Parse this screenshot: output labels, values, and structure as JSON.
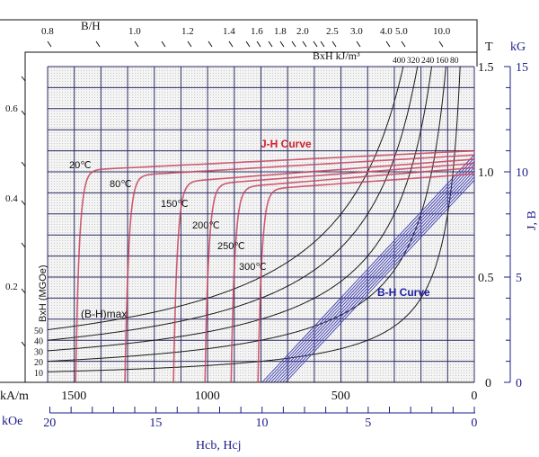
{
  "chart_data": {
    "type": "line",
    "title": "",
    "x_axis": {
      "label": "Hcb,  Hcj",
      "unit_primary": "kA/m",
      "ticks_primary": [
        "1500",
        "1000",
        "500",
        "0"
      ],
      "tick_values_primary": [
        1500,
        1000,
        500,
        0
      ],
      "unit_secondary": "kOe",
      "ticks_secondary": [
        "20",
        "15",
        "10",
        "5",
        "0"
      ],
      "tick_values_secondary": [
        20,
        15,
        10,
        5,
        0
      ],
      "range_kAm": [
        1600,
        0
      ],
      "direction": "reversed"
    },
    "y_axis": {
      "label": "J,  B",
      "unit_primary": "T",
      "ticks_primary": [
        "1.5",
        "1.0",
        "0.5",
        "0"
      ],
      "tick_values_primary": [
        1.5,
        1.0,
        0.5,
        0
      ],
      "unit_secondary": "kG",
      "ticks_secondary": [
        "15",
        "10",
        "5",
        "0"
      ],
      "range_T": [
        0,
        1.5
      ]
    },
    "grid": true,
    "permeance_scale": {
      "label": "B/H",
      "top_ticks": [
        "0.8",
        "1.0",
        "1.2",
        "1.4",
        "1.6",
        "1.8",
        "2.0",
        "2.5",
        "3.0",
        "4.0",
        "5.0",
        "10.0"
      ],
      "left_ticks": [
        "0.6",
        "0.4",
        "0.2"
      ]
    },
    "energy_product": {
      "label_si": "BxH kJ/m³",
      "label_cgs": "BxH (MGOe)",
      "max_label": "(B-H)max",
      "values_kJm3": [
        400,
        320,
        240,
        160,
        80
      ],
      "labels_kJm3": [
        "400",
        "320",
        "240",
        "160",
        "80"
      ],
      "labels_MGOe": [
        "50",
        "40",
        "30",
        "20",
        "10"
      ]
    },
    "j_h_curves": {
      "label": "J-H Curve",
      "series": [
        {
          "name": "20℃",
          "jr_T": 1.1,
          "j_knee_T": 1.01,
          "hcj_kAm": 1495
        },
        {
          "name": "80℃",
          "jr_T": 1.08,
          "j_knee_T": 0.985,
          "hcj_kAm": 1310
        },
        {
          "name": "150℃",
          "jr_T": 1.06,
          "j_knee_T": 0.955,
          "hcj_kAm": 1128
        },
        {
          "name": "200℃",
          "jr_T": 1.04,
          "j_knee_T": 0.945,
          "hcj_kAm": 1010
        },
        {
          "name": "250℃",
          "jr_T": 1.02,
          "j_knee_T": 0.93,
          "hcj_kAm": 912
        },
        {
          "name": "300℃",
          "jr_T": 0.99,
          "j_knee_T": 0.92,
          "hcj_kAm": 811
        }
      ]
    },
    "b_h_curves": {
      "label": "B-H Curve",
      "slope_T_per_kAm": 0.00137,
      "br_T": [
        0.97,
        0.985,
        1.0,
        1.015,
        1.03,
        1.045,
        1.06,
        1.075,
        1.09
      ]
    },
    "colors": {
      "j_h": "#c8405a",
      "b_h": "#3a3ab0",
      "grid": "#2c2c66",
      "energy": "#1a1a1a",
      "axis_secondary": "#1c1c8a"
    }
  }
}
